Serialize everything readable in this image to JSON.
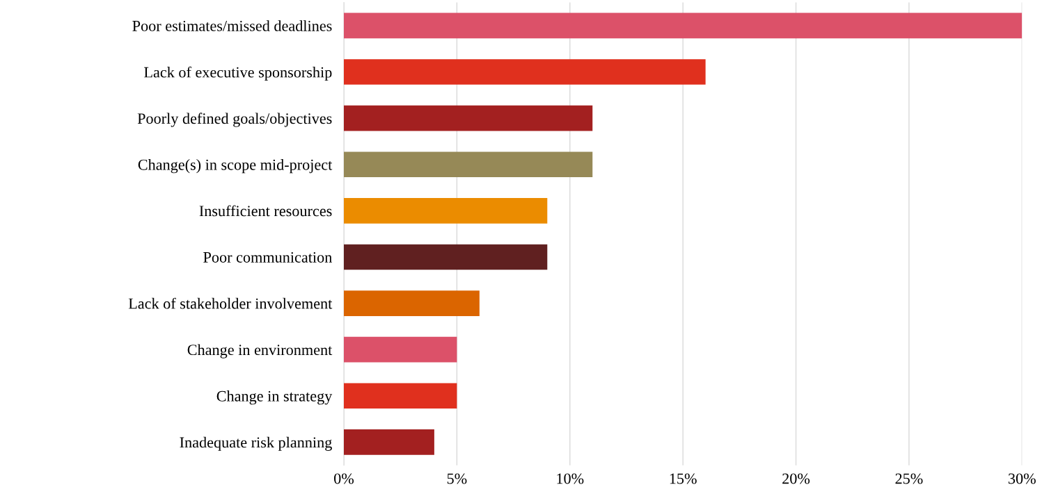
{
  "chart_data": {
    "type": "bar",
    "orientation": "horizontal",
    "categories": [
      "Poor estimates/missed deadlines",
      "Lack of executive sponsorship",
      "Poorly defined goals/objectives",
      "Change(s) in scope mid-project",
      "Insufficient resources",
      "Poor communication",
      "Lack of stakeholder involvement",
      "Change in environment",
      "Change in strategy",
      "Inadequate risk planning"
    ],
    "values": [
      30,
      16,
      11,
      11,
      9,
      9,
      6,
      5,
      5,
      4
    ],
    "colors": [
      "#dc5169",
      "#e0301e",
      "#a32020",
      "#968957",
      "#eb8c00",
      "#602020",
      "#db6500",
      "#dc5169",
      "#e0301e",
      "#a32020"
    ],
    "xlim": [
      0,
      30
    ],
    "xticks": [
      {
        "value": 0,
        "label": "0%"
      },
      {
        "value": 5,
        "label": "5%"
      },
      {
        "value": 10,
        "label": "10%"
      },
      {
        "value": 15,
        "label": "15%"
      },
      {
        "value": 20,
        "label": "20%"
      },
      {
        "value": 25,
        "label": "25%"
      },
      {
        "value": 30,
        "label": "30%"
      }
    ],
    "grid": "x"
  }
}
